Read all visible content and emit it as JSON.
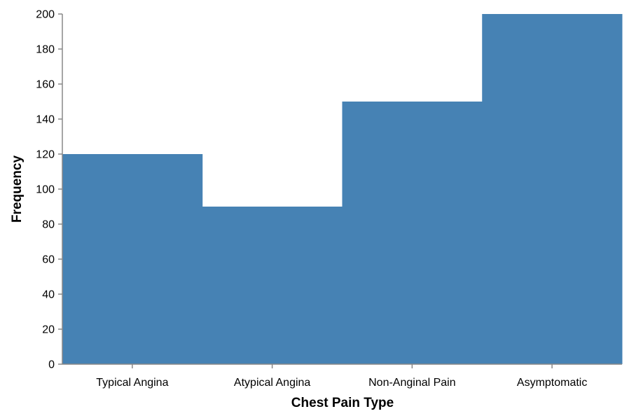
{
  "chart_data": {
    "type": "bar",
    "categories": [
      "Typical Angina",
      "Atypical Angina",
      "Non-Anginal Pain",
      "Asymptomatic"
    ],
    "values": [
      120,
      90,
      150,
      200
    ],
    "xlabel": "Chest Pain Type",
    "ylabel": "Frequency",
    "ylim": [
      0,
      200
    ],
    "yticks": [
      0,
      20,
      40,
      60,
      80,
      100,
      120,
      140,
      160,
      180,
      200
    ],
    "bar_color": "#4682b4",
    "grid": false
  }
}
